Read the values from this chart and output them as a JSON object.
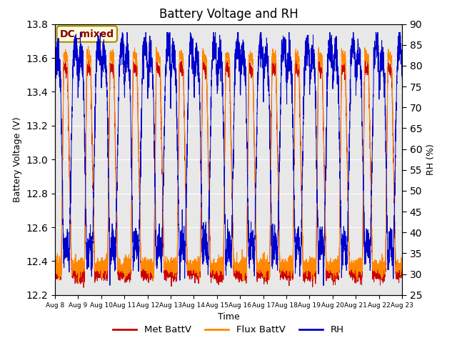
{
  "title": "Battery Voltage and RH",
  "xlabel": "Time",
  "ylabel_left": "Battery Voltage (V)",
  "ylabel_right": "RH (%)",
  "ylim_left": [
    12.2,
    13.8
  ],
  "ylim_right": [
    25,
    90
  ],
  "yticks_left": [
    12.2,
    12.4,
    12.6,
    12.8,
    13.0,
    13.2,
    13.4,
    13.6,
    13.8
  ],
  "yticks_right": [
    25,
    30,
    35,
    40,
    45,
    50,
    55,
    60,
    65,
    70,
    75,
    80,
    85,
    90
  ],
  "xtick_labels": [
    "Aug 8",
    "Aug 9",
    "Aug 10",
    "Aug 11",
    "Aug 12",
    "Aug 13",
    "Aug 14",
    "Aug 15",
    "Aug 16",
    "Aug 17",
    "Aug 18",
    "Aug 19",
    "Aug 20",
    "Aug 21",
    "Aug 22",
    "Aug 23"
  ],
  "annotation_text": "DC_mixed",
  "color_met": "#cc0000",
  "color_flux": "#ff8800",
  "color_rh": "#0000cc",
  "bg_color": "#e8e8e8",
  "legend_labels": [
    "Met BattV",
    "Flux BattV",
    "RH"
  ],
  "grid_color": "#ffffff",
  "title_fontsize": 12
}
